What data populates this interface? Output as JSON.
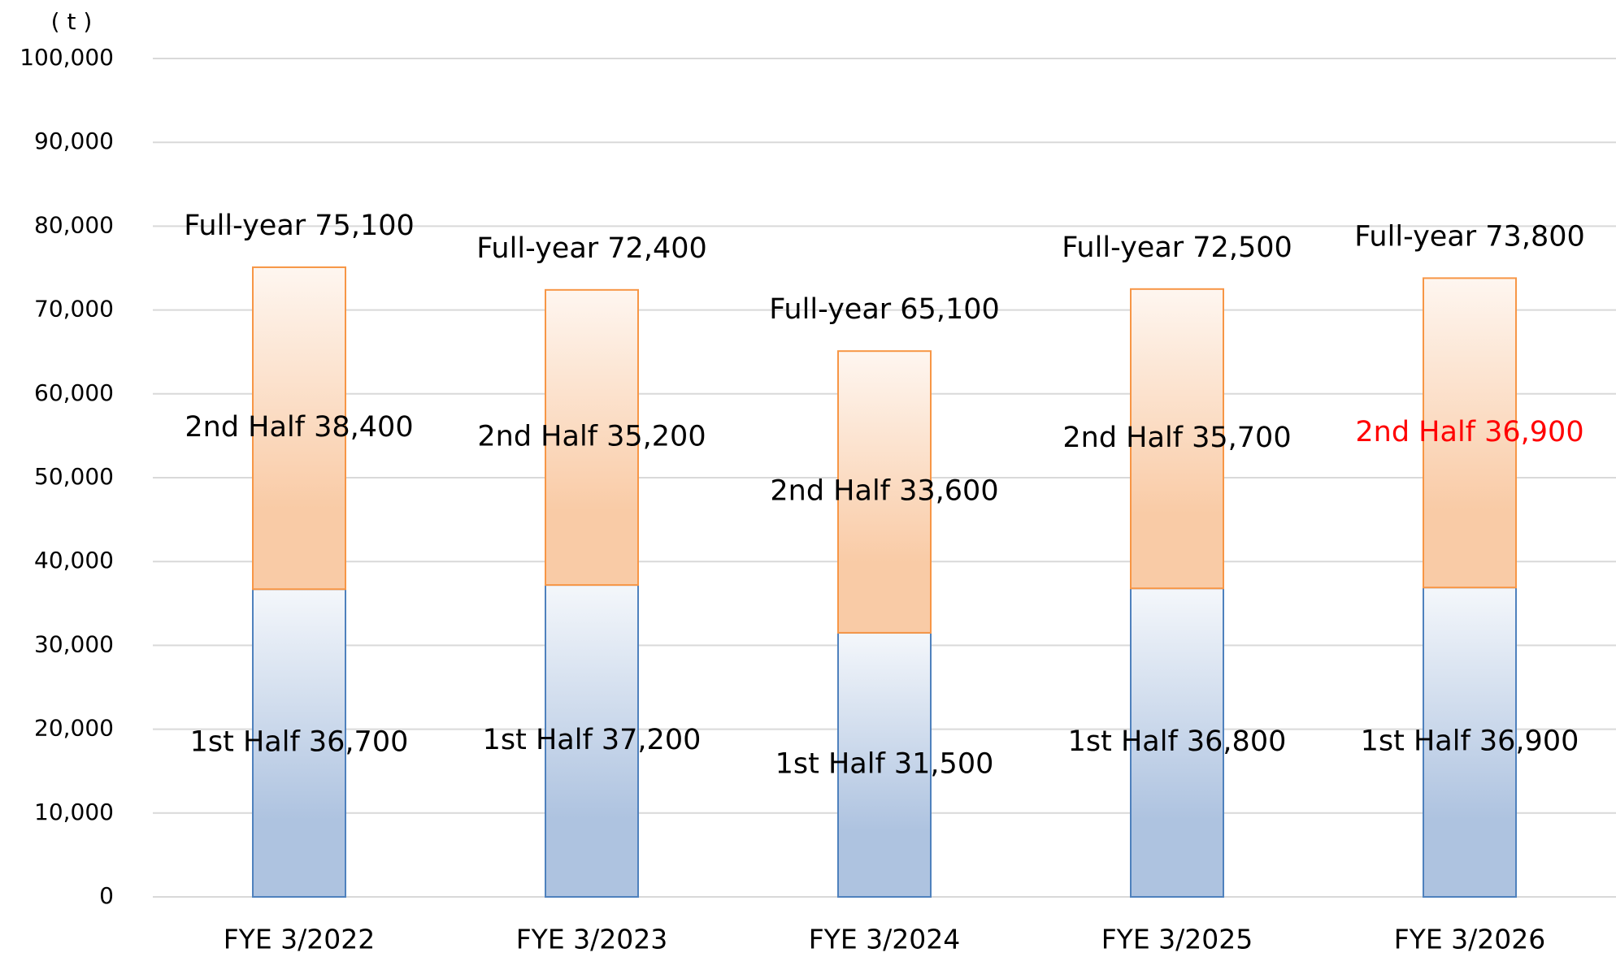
{
  "chart_data": {
    "type": "stacked_bar",
    "y_unit": "( t )",
    "categories": [
      "FYE 3/2022",
      "FYE 3/2023",
      "FYE 3/2024",
      "FYE 3/2025",
      "FYE 3/2026"
    ],
    "series": [
      {
        "color": "#4f81bd",
        "gradient": [
          "#f4f7fb",
          "#aec3e0"
        ],
        "values": [
          36700,
          37200,
          31500,
          36800,
          36900
        ],
        "value_labels": [
          "1st Half 36,700",
          "1st Half 37,200",
          "1st Half 31,500",
          "1st Half 36,800",
          "1st Half 36,900"
        ],
        "label_colors": [
          "#000000",
          "#000000",
          "#000000",
          "#000000",
          "#000000"
        ]
      },
      {
        "color": "#f79646",
        "gradient": [
          "#fef6f0",
          "#f9cba6"
        ],
        "values": [
          38400,
          35200,
          33600,
          35700,
          36900
        ],
        "value_labels": [
          "2nd Half 38,400",
          "2nd Half 35,200",
          "2nd Half 33,600",
          "2nd Half 35,700",
          "2nd Half 36,900"
        ],
        "label_colors": [
          "#000000",
          "#000000",
          "#000000",
          "#000000",
          "#ff0000"
        ]
      }
    ],
    "totals": {
      "values": [
        75100,
        72400,
        65100,
        72500,
        73800
      ],
      "value_labels": [
        "Full-year 75,100",
        "Full-year 72,400",
        "Full-year 65,100",
        "Full-year 72,500",
        "Full-year 73,800"
      ]
    },
    "ylim": [
      0,
      100000
    ],
    "yticks": [
      0,
      {
        "value": 10000,
        "label": "10,000"
      },
      {
        "value": 20000,
        "label": "20,000"
      },
      {
        "value": 30000,
        "label": "30,000"
      },
      {
        "value": 40000,
        "label": "40,000"
      },
      {
        "value": 50000,
        "label": "50,000"
      },
      {
        "value": 60000,
        "label": "60,000"
      },
      {
        "value": 70000,
        "label": "70,000"
      },
      {
        "value": 80000,
        "label": "80,000"
      },
      {
        "value": 90000,
        "label": "90,000"
      },
      {
        "value": 100000,
        "label": "100,000"
      }
    ],
    "grid": true,
    "grid_color": "#d9d9d9"
  }
}
